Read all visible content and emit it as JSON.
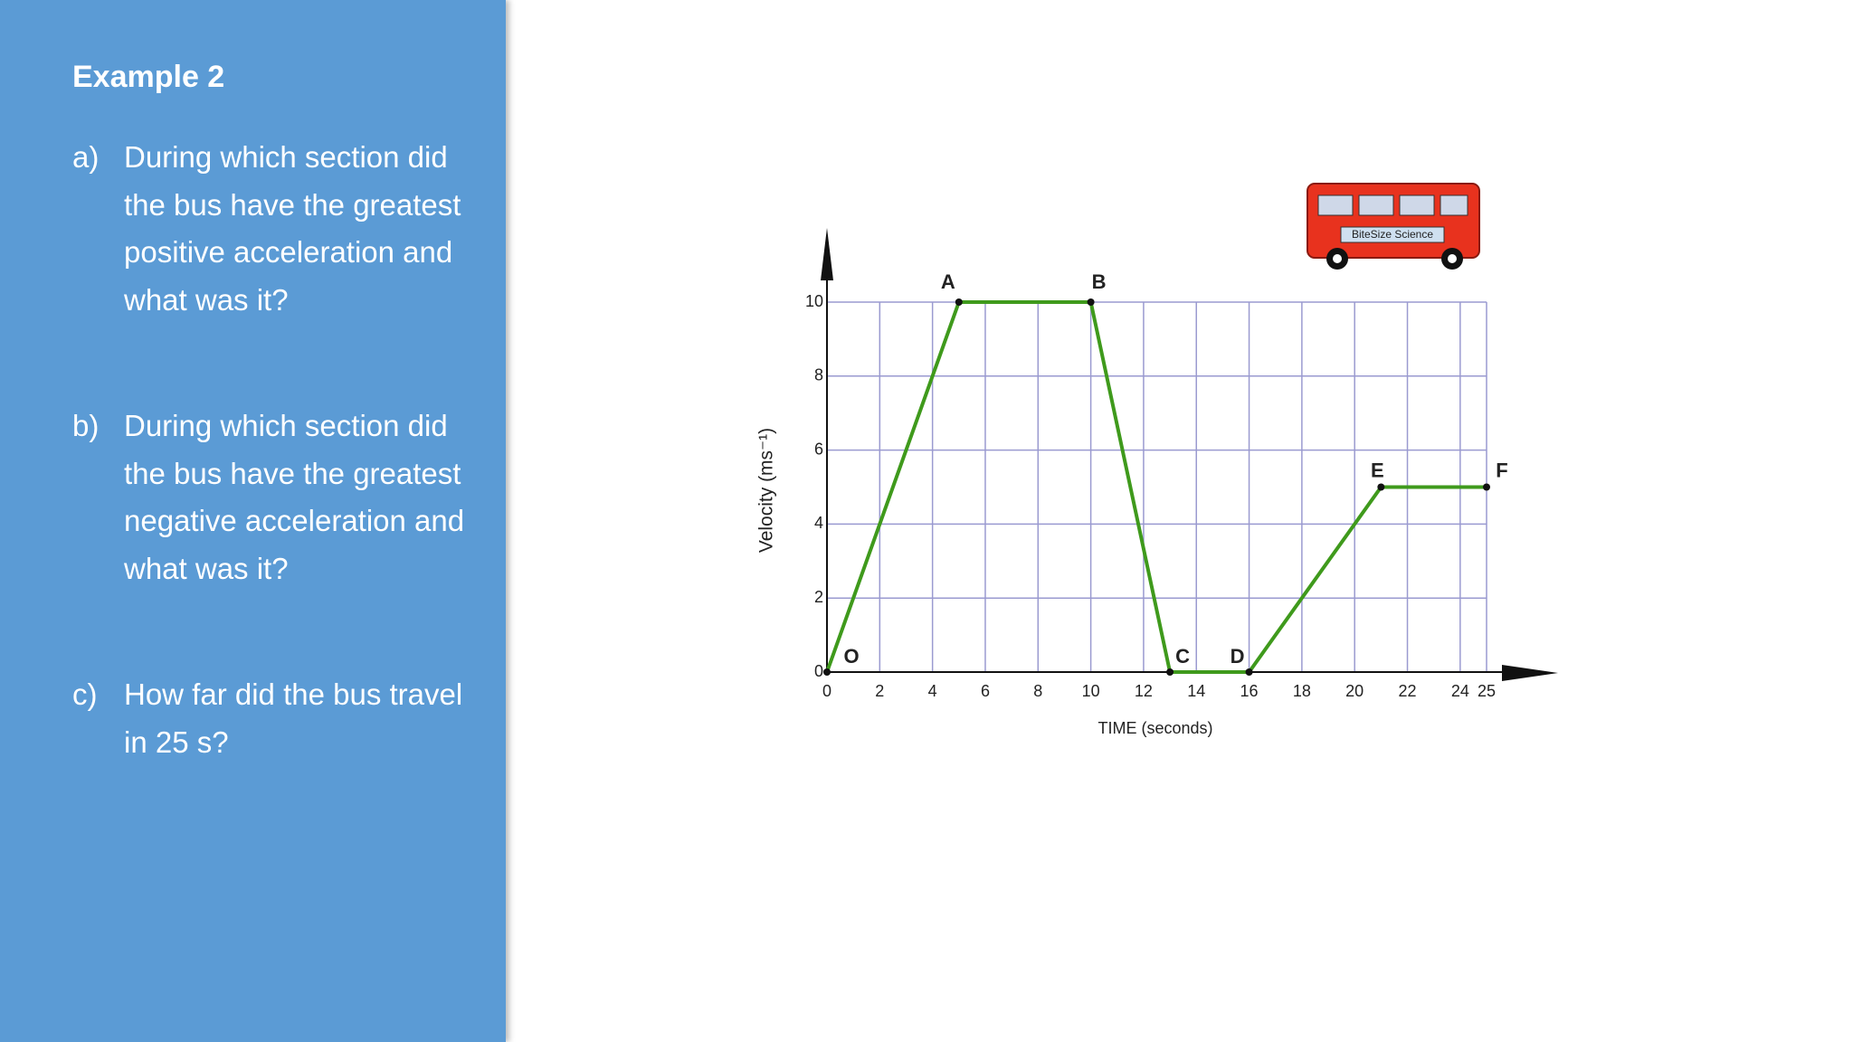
{
  "panel": {
    "title": "Example 2",
    "questions": [
      {
        "label": "a)",
        "text": "During which section did the bus have the greatest positive acceleration and what was it?"
      },
      {
        "label": "b)",
        "text": "During which section did the bus have the greatest negative acceleration and what was it?"
      },
      {
        "label": "c)",
        "text": "How far did the bus travel in 25 s?"
      }
    ]
  },
  "bus_sign": "BiteSize Science",
  "chart_data": {
    "type": "line",
    "x": [
      0,
      5,
      10,
      13,
      16,
      21,
      25
    ],
    "values": [
      0,
      10,
      10,
      0,
      0,
      5,
      5
    ],
    "point_labels": [
      "O",
      "A",
      "B",
      "C",
      "D",
      "E",
      "F"
    ],
    "color": "#3f9a1c",
    "xlabel": "TIME (seconds)",
    "ylabel": "Velocity (ms⁻¹)",
    "xlim": [
      0,
      25
    ],
    "ylim": [
      0,
      10
    ],
    "xticks": [
      0,
      2,
      4,
      6,
      8,
      10,
      12,
      14,
      16,
      18,
      20,
      22,
      24,
      25
    ],
    "yticks": [
      0,
      2,
      4,
      6,
      8,
      10
    ],
    "grid": true
  }
}
